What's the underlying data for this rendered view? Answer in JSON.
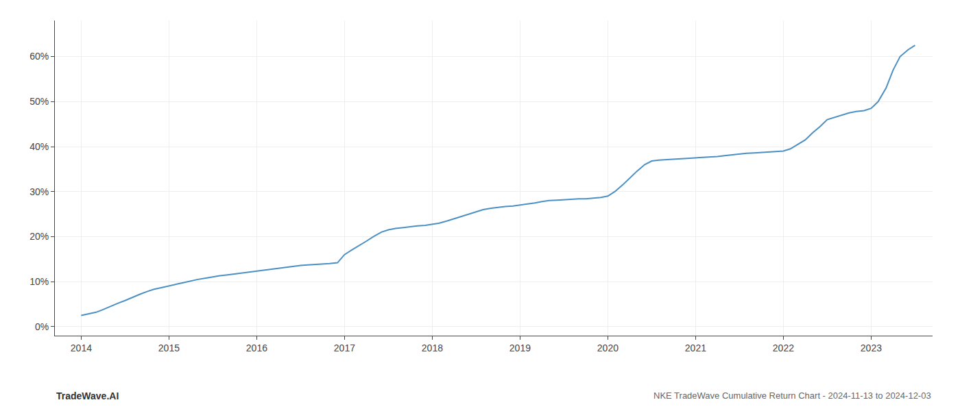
{
  "chart_data": {
    "type": "line",
    "title": "NKE TradeWave Cumulative Return Chart - 2024-11-13 to 2024-12-03",
    "annotations": [
      {
        "text": "TradeWave.AI"
      }
    ],
    "x": [
      2014.0,
      2014.08,
      2014.17,
      2014.25,
      2014.33,
      2014.42,
      2014.5,
      2014.58,
      2014.67,
      2014.75,
      2014.83,
      2014.92,
      2015.0,
      2015.08,
      2015.17,
      2015.25,
      2015.33,
      2015.42,
      2015.5,
      2015.58,
      2015.67,
      2015.75,
      2015.83,
      2015.92,
      2016.0,
      2016.08,
      2016.17,
      2016.25,
      2016.33,
      2016.42,
      2016.5,
      2016.58,
      2016.67,
      2016.75,
      2016.83,
      2016.92,
      2017.0,
      2017.08,
      2017.17,
      2017.25,
      2017.33,
      2017.42,
      2017.5,
      2017.58,
      2017.67,
      2017.75,
      2017.83,
      2017.92,
      2018.0,
      2018.08,
      2018.17,
      2018.25,
      2018.33,
      2018.42,
      2018.5,
      2018.58,
      2018.67,
      2018.75,
      2018.83,
      2018.92,
      2019.0,
      2019.08,
      2019.17,
      2019.25,
      2019.33,
      2019.42,
      2019.5,
      2019.58,
      2019.67,
      2019.75,
      2019.83,
      2019.92,
      2020.0,
      2020.08,
      2020.17,
      2020.25,
      2020.33,
      2020.42,
      2020.5,
      2020.58,
      2020.67,
      2020.75,
      2020.83,
      2020.92,
      2021.0,
      2021.08,
      2021.17,
      2021.25,
      2021.33,
      2021.42,
      2021.5,
      2021.58,
      2021.67,
      2021.75,
      2021.83,
      2021.92,
      2022.0,
      2022.08,
      2022.17,
      2022.25,
      2022.33,
      2022.42,
      2022.5,
      2022.58,
      2022.67,
      2022.75,
      2022.83,
      2022.92,
      2023.0,
      2023.08,
      2023.17,
      2023.25,
      2023.33,
      2023.42,
      2023.5
    ],
    "values": [
      2.5,
      2.8,
      3.2,
      3.8,
      4.5,
      5.2,
      5.8,
      6.5,
      7.2,
      7.8,
      8.3,
      8.7,
      9.0,
      9.4,
      9.8,
      10.2,
      10.5,
      10.8,
      11.1,
      11.3,
      11.5,
      11.7,
      11.9,
      12.1,
      12.3,
      12.5,
      12.7,
      13.0,
      13.2,
      13.4,
      13.6,
      13.7,
      13.8,
      13.9,
      14.0,
      14.2,
      16.0,
      17.0,
      18.0,
      19.0,
      20.0,
      21.0,
      21.5,
      21.8,
      22.0,
      22.2,
      22.4,
      22.5,
      22.7,
      23.0,
      23.5,
      24.0,
      24.5,
      25.0,
      25.5,
      26.0,
      26.3,
      26.5,
      26.7,
      26.8,
      27.0,
      27.2,
      27.5,
      27.8,
      28.0,
      28.1,
      28.2,
      28.3,
      28.4,
      28.4,
      28.5,
      28.7,
      29.0,
      30.0,
      31.5,
      33.0,
      34.5,
      36.0,
      36.8,
      37.0,
      37.1,
      37.2,
      37.3,
      37.4,
      37.5,
      37.6,
      37.7,
      37.8,
      38.0,
      38.2,
      38.4,
      38.5,
      38.6,
      38.7,
      38.8,
      38.9,
      39.0,
      39.5,
      40.5,
      41.5,
      43.0,
      44.5,
      46.0,
      46.5,
      47.0,
      47.5,
      47.8,
      48.0,
      48.5,
      50.0,
      53.0,
      57.0,
      60.0,
      61.5,
      62.5
    ],
    "color": "#4a90c4",
    "xlim": [
      2013.7,
      2023.7
    ],
    "ylim": [
      -2,
      68
    ],
    "xticks": [
      2014,
      2015,
      2016,
      2017,
      2018,
      2019,
      2020,
      2021,
      2022,
      2023
    ],
    "yticks": [
      {
        "value": 0,
        "label": "0%"
      },
      {
        "value": 10,
        "label": "10%"
      },
      {
        "value": 20,
        "label": "20%"
      },
      {
        "value": 30,
        "label": "30%"
      },
      {
        "value": 40,
        "label": "40%"
      },
      {
        "value": 50,
        "label": "50%"
      },
      {
        "value": 60,
        "label": "60%"
      }
    ],
    "grid": true
  }
}
